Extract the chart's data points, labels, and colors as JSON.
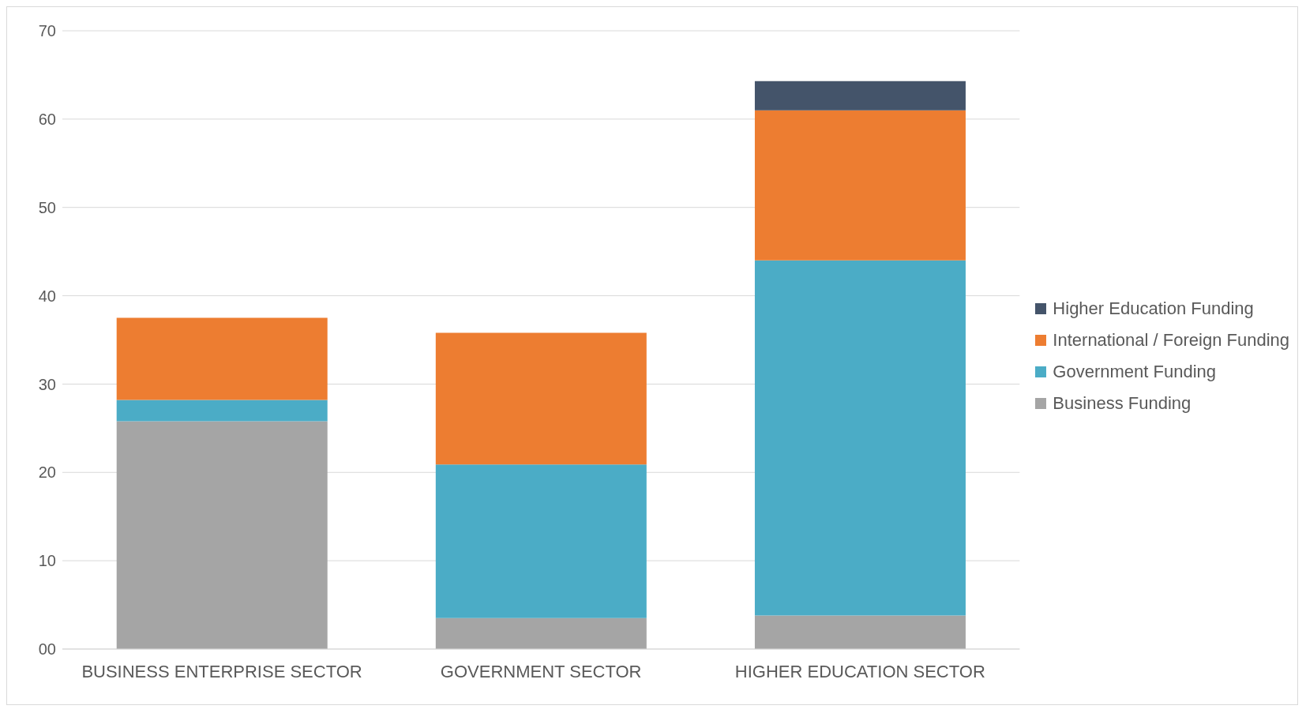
{
  "chart_data": {
    "type": "bar",
    "stacked": true,
    "categories": [
      "BUSINESS ENTERPRISE SECTOR",
      "GOVERNMENT SECTOR",
      "HIGHER EDUCATION SECTOR"
    ],
    "series": [
      {
        "name": "Business Funding",
        "color": "#a5a5a5",
        "values": [
          25.8,
          3.5,
          3.8
        ]
      },
      {
        "name": "Government Funding",
        "color": "#4bacc6",
        "values": [
          2.4,
          17.4,
          40.2
        ]
      },
      {
        "name": "International / Foreign Funding",
        "color": "#ed7d31",
        "values": [
          9.3,
          14.9,
          17.0
        ]
      },
      {
        "name": "Higher Education Funding",
        "color": "#44546a",
        "values": [
          null,
          null,
          3.3
        ]
      }
    ],
    "ylim": [
      0,
      70
    ],
    "yticks": [
      {
        "value": 0,
        "label": "00"
      },
      10,
      20,
      30,
      40,
      50,
      60,
      70
    ],
    "grid": "y",
    "legend": "right"
  }
}
